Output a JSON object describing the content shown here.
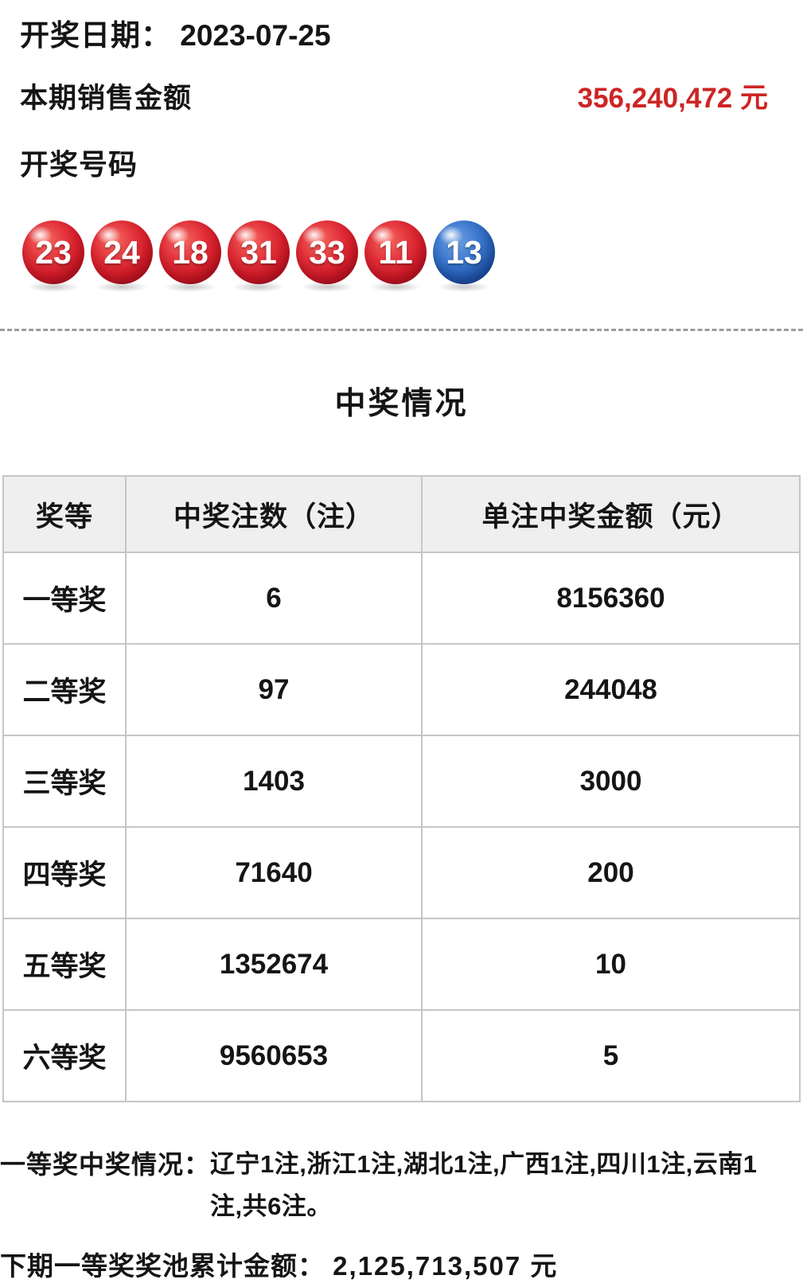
{
  "header": {
    "date_label": "开奖日期：",
    "date_value": "2023-07-25",
    "sales_label": "本期销售金额",
    "sales_value": "356,240,472 元",
    "numbers_label": "开奖号码"
  },
  "balls": [
    {
      "number": "23",
      "color": "red"
    },
    {
      "number": "24",
      "color": "red"
    },
    {
      "number": "18",
      "color": "red"
    },
    {
      "number": "31",
      "color": "red"
    },
    {
      "number": "33",
      "color": "red"
    },
    {
      "number": "11",
      "color": "red"
    },
    {
      "number": "13",
      "color": "blue"
    }
  ],
  "section": {
    "title": "中奖情况"
  },
  "table": {
    "headers": [
      "奖等",
      "中奖注数（注）",
      "单注中奖金额（元）"
    ],
    "rows": [
      {
        "level": "一等奖",
        "count": "6",
        "amount": "8156360"
      },
      {
        "level": "二等奖",
        "count": "97",
        "amount": "244048"
      },
      {
        "level": "三等奖",
        "count": "1403",
        "amount": "3000"
      },
      {
        "level": "四等奖",
        "count": "71640",
        "amount": "200"
      },
      {
        "level": "五等奖",
        "count": "1352674",
        "amount": "10"
      },
      {
        "level": "六等奖",
        "count": "9560653",
        "amount": "5"
      }
    ]
  },
  "footer": {
    "first_prize_label": "一等奖中奖情况：",
    "first_prize_detail": "辽宁1注,浙江1注,湖北1注,广西1注,四川1注,云南1注,共6注。",
    "pool_label": "下期一等奖奖池累计金额：",
    "pool_value": "2,125,713,507 元"
  },
  "colors": {
    "red_text": "#cd2525",
    "ball_red": "#d81e2b",
    "ball_blue": "#2c66bd",
    "header_bg": "#efefef",
    "table_border": "#c6c6c6"
  }
}
